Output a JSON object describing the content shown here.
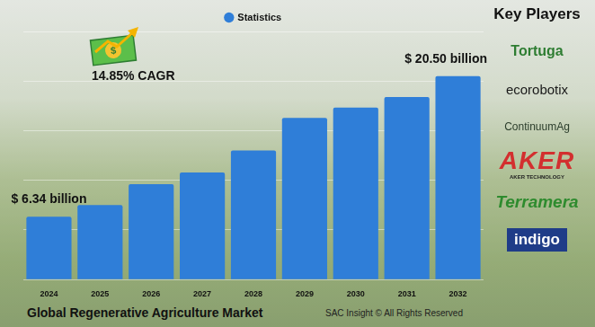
{
  "chart_data": {
    "type": "bar",
    "title": "Global Regenerative Agriculture Market",
    "categories": [
      "2024",
      "2025",
      "2026",
      "2027",
      "2028",
      "2029",
      "2030",
      "2031",
      "2032"
    ],
    "series": [
      {
        "name": "Statistics",
        "color": "#2f7ed8",
        "values": [
          6.34,
          7.5,
          9.62,
          10.78,
          13.0,
          16.28,
          17.33,
          18.39,
          20.5
        ]
      }
    ],
    "ylim": [
      0,
      25
    ],
    "yticks": [
      0,
      5,
      10,
      15,
      20,
      25
    ],
    "grid": true,
    "legend": "top",
    "tick_labels": "x",
    "annotations": [
      {
        "text": "$ 6.34 billion",
        "category": "2024"
      },
      {
        "text": "$ 20.50 billion",
        "category": "2032"
      },
      {
        "text": "14.85% CAGR"
      }
    ]
  },
  "key_players": {
    "title": "Key Players",
    "players": [
      {
        "name": "Tortuga"
      },
      {
        "name": "ecorobotix"
      },
      {
        "name": "ContinuumAg"
      },
      {
        "name": "AKER",
        "subtitle": "AKER TECHNOLOGY"
      },
      {
        "name": "Terramera"
      },
      {
        "name": "indigo"
      }
    ]
  },
  "footer": "SAC Insight © All Rights Reserved"
}
